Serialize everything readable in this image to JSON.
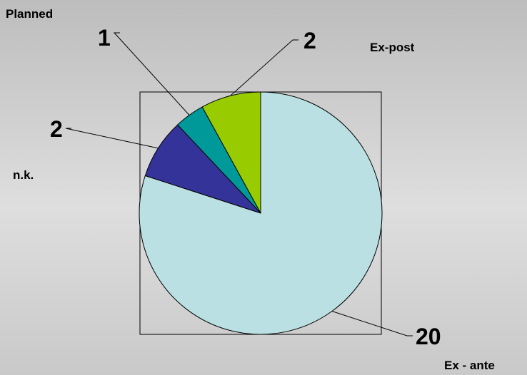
{
  "chart_data": {
    "type": "pie",
    "title": "",
    "categories": [
      "Ex-post",
      "Planned",
      "n.k.",
      "Ex - ante"
    ],
    "values": [
      2,
      1,
      2,
      20
    ],
    "colors": [
      "#99cc00",
      "#009999",
      "#333399",
      "#bbe0e3"
    ],
    "data_labels": [
      "2",
      "1",
      "2",
      "20"
    ],
    "start": "12 o'clock, counter-clockwise",
    "frame": true
  }
}
